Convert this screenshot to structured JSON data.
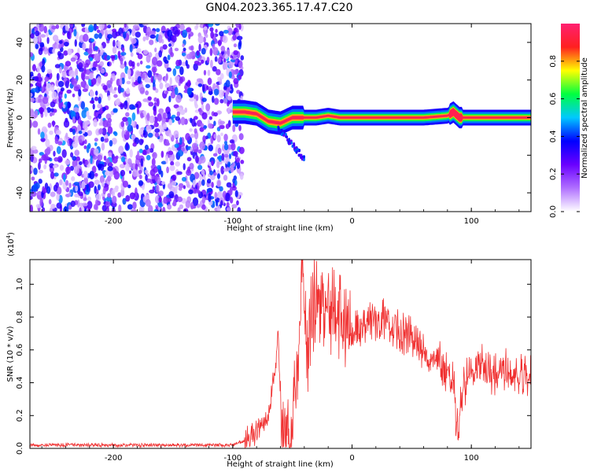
{
  "figure": {
    "title": "GN04.2023.365.17.47.C20"
  },
  "chart_data": [
    {
      "type": "heatmap",
      "name": "spectrogram",
      "xlabel": "Height of straight line (km)",
      "ylabel": "Frequency (Hz)",
      "xlim": [
        -270,
        150
      ],
      "ylim": [
        -50,
        50
      ],
      "x_ticks": [
        "-200",
        "-100",
        "0",
        "100"
      ],
      "y_ticks": [
        "-40",
        "-20",
        "0",
        "20",
        "40"
      ],
      "x_tick_values": [
        -200,
        -100,
        0,
        100
      ],
      "y_tick_values": [
        -40,
        -20,
        0,
        20,
        40
      ],
      "colorbar": {
        "label": "Normalized spectral amplitude",
        "range": [
          0,
          1
        ],
        "ticks": [
          "0.0",
          "0.2",
          "0.4",
          "0.6",
          "0.8"
        ],
        "tick_values": [
          0.0,
          0.2,
          0.4,
          0.6,
          0.8
        ],
        "colors": [
          "#ffffff",
          "#b070ff",
          "#6a00ff",
          "#0000ff",
          "#00c8ff",
          "#00ff40",
          "#ffff00",
          "#ff2020",
          "#ff2070"
        ]
      },
      "noise_region": {
        "x_range": [
          -270,
          -98
        ],
        "freq_range": [
          -50,
          50
        ],
        "amplitude": "0.1-0.5"
      },
      "signal_band": {
        "x": [
          -100,
          -90,
          -80,
          -70,
          -60,
          -50,
          -40,
          -30,
          -20,
          -10,
          0,
          20,
          40,
          60,
          80,
          85,
          90,
          100,
          120,
          150
        ],
        "freq": [
          3,
          3,
          2,
          -2,
          -3,
          0,
          0,
          0,
          1,
          0,
          0,
          0,
          0,
          0,
          1,
          3,
          0,
          0,
          0,
          0
        ],
        "amplitude": "0.9-1.0"
      },
      "grid": false
    },
    {
      "type": "line",
      "name": "snr",
      "xlabel": "Height of straight line (km)",
      "ylabel": "SNR (10 * v/v)",
      "y_multiplier": "(x10",
      "y_multiplier_exp": "4",
      "y_multiplier_close": ")",
      "xlim": [
        -270,
        150
      ],
      "ylim": [
        0,
        1.15
      ],
      "x_ticks": [
        "-200",
        "-100",
        "0",
        "100"
      ],
      "y_ticks": [
        "0.0",
        "0.2",
        "0.4",
        "0.6",
        "0.8",
        "1.0"
      ],
      "x_tick_values": [
        -200,
        -100,
        0,
        100
      ],
      "y_tick_values": [
        0.0,
        0.2,
        0.4,
        0.6,
        0.8,
        1.0
      ],
      "color": "#f03030",
      "series": [
        {
          "x": [
            -270,
            -200,
            -120,
            -100,
            -90,
            -80,
            -70,
            -65,
            -62,
            -60,
            -58,
            -55,
            -52,
            -50,
            -48,
            -45,
            -42,
            -40,
            -38,
            -35,
            -30,
            -20,
            -10,
            0,
            10,
            20,
            30,
            40,
            50,
            60,
            70,
            80,
            85,
            88,
            90,
            92,
            95,
            100,
            110,
            120,
            130,
            140,
            150
          ],
          "y": [
            0.02,
            0.02,
            0.02,
            0.02,
            0.05,
            0.1,
            0.2,
            0.45,
            0.7,
            0.3,
            0.05,
            0.08,
            0.04,
            0.05,
            0.35,
            0.5,
            1.05,
            0.95,
            0.55,
            0.75,
            0.95,
            0.85,
            0.8,
            0.7,
            0.72,
            0.78,
            0.78,
            0.72,
            0.68,
            0.62,
            0.55,
            0.45,
            0.4,
            0.1,
            0.15,
            0.35,
            0.4,
            0.48,
            0.5,
            0.45,
            0.5,
            0.44,
            0.45
          ]
        }
      ],
      "grid": false
    }
  ]
}
